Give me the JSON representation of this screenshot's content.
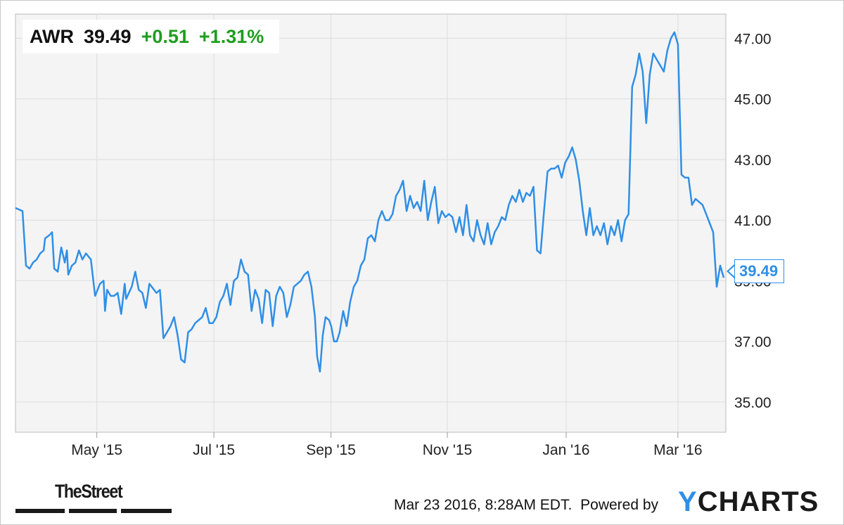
{
  "ticker": {
    "symbol": "AWR",
    "price": "39.49",
    "change": "+0.51",
    "change_pct": "+1.31%"
  },
  "price_tag": "39.49",
  "footer": {
    "brand": "TheStreet",
    "timestamp": "Mar 23 2016, 8:28AM EDT.",
    "powered_by": "Powered by",
    "logo_y": "Y",
    "logo_rest": "CHARTS"
  },
  "colors": {
    "line": "#2f8fe6",
    "positive": "#1e9e1e",
    "grid": "#dddddd",
    "plot_bg": "#f4f4f4"
  },
  "chart_data": {
    "type": "line",
    "title": "",
    "xlabel": "",
    "ylabel": "",
    "ylim": [
      34,
      47.8
    ],
    "y_ticks": [
      "35.00",
      "37.00",
      "39.00",
      "41.00",
      "43.00",
      "45.00",
      "47.00"
    ],
    "x_ticks": [
      "May '15",
      "Jul '15",
      "Sep '15",
      "Nov '15",
      "Jan '16",
      "Mar '16"
    ],
    "grid": true,
    "legend": "none",
    "series": [
      {
        "values": [
          [
            0,
            41.4
          ],
          [
            0.01,
            41.3
          ],
          [
            0.015,
            39.5
          ],
          [
            0.02,
            39.4
          ],
          [
            0.025,
            39.6
          ],
          [
            0.03,
            39.7
          ],
          [
            0.035,
            39.9
          ],
          [
            0.04,
            40.0
          ],
          [
            0.042,
            40.4
          ],
          [
            0.048,
            40.5
          ],
          [
            0.052,
            40.6
          ],
          [
            0.055,
            39.4
          ],
          [
            0.06,
            39.3
          ],
          [
            0.065,
            40.1
          ],
          [
            0.07,
            39.6
          ],
          [
            0.073,
            40.0
          ],
          [
            0.075,
            39.2
          ],
          [
            0.08,
            39.5
          ],
          [
            0.085,
            39.6
          ],
          [
            0.09,
            40.0
          ],
          [
            0.095,
            39.7
          ],
          [
            0.1,
            39.9
          ],
          [
            0.107,
            39.7
          ],
          [
            0.113,
            38.5
          ],
          [
            0.12,
            38.9
          ],
          [
            0.125,
            39.0
          ],
          [
            0.127,
            38.0
          ],
          [
            0.13,
            38.7
          ],
          [
            0.135,
            38.5
          ],
          [
            0.14,
            38.5
          ],
          [
            0.145,
            38.6
          ],
          [
            0.15,
            37.9
          ],
          [
            0.155,
            38.9
          ],
          [
            0.157,
            38.4
          ],
          [
            0.165,
            38.8
          ],
          [
            0.17,
            39.3
          ],
          [
            0.175,
            38.7
          ],
          [
            0.18,
            38.6
          ],
          [
            0.185,
            38.1
          ],
          [
            0.19,
            38.9
          ],
          [
            0.2,
            38.6
          ],
          [
            0.205,
            38.7
          ],
          [
            0.21,
            37.1
          ],
          [
            0.215,
            37.3
          ],
          [
            0.22,
            37.5
          ],
          [
            0.225,
            37.8
          ],
          [
            0.23,
            37.2
          ],
          [
            0.235,
            36.4
          ],
          [
            0.24,
            36.3
          ],
          [
            0.245,
            37.3
          ],
          [
            0.25,
            37.4
          ],
          [
            0.255,
            37.6
          ],
          [
            0.26,
            37.7
          ],
          [
            0.265,
            37.8
          ],
          [
            0.27,
            38.1
          ],
          [
            0.275,
            37.6
          ],
          [
            0.28,
            37.6
          ],
          [
            0.285,
            37.8
          ],
          [
            0.29,
            38.3
          ],
          [
            0.295,
            38.5
          ],
          [
            0.3,
            38.9
          ],
          [
            0.305,
            38.2
          ],
          [
            0.31,
            39.0
          ],
          [
            0.315,
            39.1
          ],
          [
            0.32,
            39.7
          ],
          [
            0.325,
            39.3
          ],
          [
            0.33,
            39.2
          ],
          [
            0.335,
            38.0
          ],
          [
            0.34,
            38.7
          ],
          [
            0.345,
            38.4
          ],
          [
            0.35,
            37.6
          ],
          [
            0.355,
            38.7
          ],
          [
            0.36,
            38.6
          ],
          [
            0.365,
            37.5
          ],
          [
            0.37,
            38.5
          ],
          [
            0.375,
            38.8
          ],
          [
            0.38,
            38.6
          ],
          [
            0.385,
            37.8
          ],
          [
            0.39,
            38.2
          ],
          [
            0.395,
            38.8
          ],
          [
            0.4,
            38.9
          ],
          [
            0.405,
            39.0
          ],
          [
            0.41,
            39.2
          ],
          [
            0.415,
            39.3
          ],
          [
            0.42,
            38.8
          ],
          [
            0.425,
            37.8
          ],
          [
            0.428,
            36.5
          ],
          [
            0.432,
            36.0
          ],
          [
            0.436,
            37.2
          ],
          [
            0.44,
            37.8
          ],
          [
            0.445,
            37.7
          ],
          [
            0.448,
            37.5
          ],
          [
            0.452,
            37.0
          ],
          [
            0.456,
            37.0
          ],
          [
            0.46,
            37.3
          ],
          [
            0.465,
            38.0
          ],
          [
            0.47,
            37.5
          ],
          [
            0.475,
            38.3
          ],
          [
            0.48,
            38.8
          ],
          [
            0.485,
            39.0
          ],
          [
            0.49,
            39.5
          ],
          [
            0.495,
            39.7
          ],
          [
            0.5,
            40.4
          ],
          [
            0.505,
            40.5
          ],
          [
            0.51,
            40.3
          ],
          [
            0.515,
            41.0
          ],
          [
            0.52,
            41.3
          ],
          [
            0.525,
            41.0
          ],
          [
            0.53,
            41.0
          ],
          [
            0.535,
            41.2
          ],
          [
            0.54,
            41.8
          ],
          [
            0.545,
            42.0
          ],
          [
            0.55,
            42.3
          ],
          [
            0.555,
            41.3
          ],
          [
            0.56,
            41.8
          ],
          [
            0.565,
            41.4
          ],
          [
            0.57,
            41.6
          ],
          [
            0.575,
            41.3
          ],
          [
            0.58,
            42.3
          ],
          [
            0.585,
            41.0
          ],
          [
            0.59,
            41.6
          ],
          [
            0.595,
            42.1
          ],
          [
            0.6,
            40.9
          ],
          [
            0.605,
            41.3
          ],
          [
            0.61,
            41.1
          ],
          [
            0.615,
            41.2
          ],
          [
            0.62,
            41.1
          ],
          [
            0.625,
            40.6
          ],
          [
            0.63,
            41.1
          ],
          [
            0.635,
            40.5
          ],
          [
            0.64,
            41.5
          ],
          [
            0.645,
            40.5
          ],
          [
            0.65,
            40.3
          ],
          [
            0.655,
            41.0
          ],
          [
            0.66,
            40.5
          ],
          [
            0.665,
            40.2
          ],
          [
            0.67,
            40.9
          ],
          [
            0.675,
            40.2
          ],
          [
            0.68,
            40.6
          ],
          [
            0.685,
            40.8
          ],
          [
            0.69,
            41.1
          ],
          [
            0.695,
            41.0
          ],
          [
            0.7,
            41.5
          ],
          [
            0.705,
            41.8
          ],
          [
            0.71,
            41.6
          ],
          [
            0.715,
            42.0
          ],
          [
            0.72,
            41.6
          ],
          [
            0.725,
            41.9
          ],
          [
            0.73,
            41.8
          ],
          [
            0.735,
            42.1
          ],
          [
            0.74,
            40.0
          ],
          [
            0.745,
            39.9
          ],
          [
            0.75,
            41.3
          ],
          [
            0.755,
            42.6
          ],
          [
            0.76,
            42.7
          ],
          [
            0.765,
            42.7
          ],
          [
            0.77,
            42.8
          ],
          [
            0.775,
            42.4
          ],
          [
            0.78,
            42.9
          ],
          [
            0.785,
            43.1
          ],
          [
            0.79,
            43.4
          ],
          [
            0.795,
            43.0
          ],
          [
            0.8,
            42.3
          ],
          [
            0.805,
            41.3
          ],
          [
            0.81,
            40.5
          ],
          [
            0.815,
            41.4
          ],
          [
            0.82,
            40.5
          ],
          [
            0.825,
            40.8
          ],
          [
            0.83,
            40.5
          ],
          [
            0.835,
            40.9
          ],
          [
            0.84,
            40.2
          ],
          [
            0.845,
            40.8
          ],
          [
            0.85,
            40.5
          ],
          [
            0.855,
            41.0
          ],
          [
            0.86,
            40.3
          ],
          [
            0.865,
            41.0
          ],
          [
            0.87,
            41.2
          ],
          [
            0.875,
            45.4
          ],
          [
            0.88,
            45.8
          ],
          [
            0.885,
            46.5
          ],
          [
            0.89,
            45.9
          ],
          [
            0.895,
            44.2
          ],
          [
            0.9,
            45.8
          ],
          [
            0.905,
            46.5
          ],
          [
            0.91,
            46.3
          ],
          [
            0.915,
            46.1
          ],
          [
            0.92,
            45.9
          ],
          [
            0.925,
            46.6
          ],
          [
            0.93,
            47.0
          ],
          [
            0.935,
            47.2
          ],
          [
            0.94,
            46.8
          ],
          [
            0.945,
            42.5
          ],
          [
            0.95,
            42.4
          ],
          [
            0.955,
            42.4
          ],
          [
            0.96,
            41.5
          ],
          [
            0.965,
            41.7
          ],
          [
            0.97,
            41.6
          ],
          [
            0.975,
            41.5
          ],
          [
            0.98,
            41.2
          ],
          [
            0.985,
            40.9
          ],
          [
            0.99,
            40.6
          ],
          [
            0.995,
            38.8
          ],
          [
            1.0,
            39.5
          ],
          [
            1.005,
            39.1
          ]
        ]
      }
    ]
  }
}
